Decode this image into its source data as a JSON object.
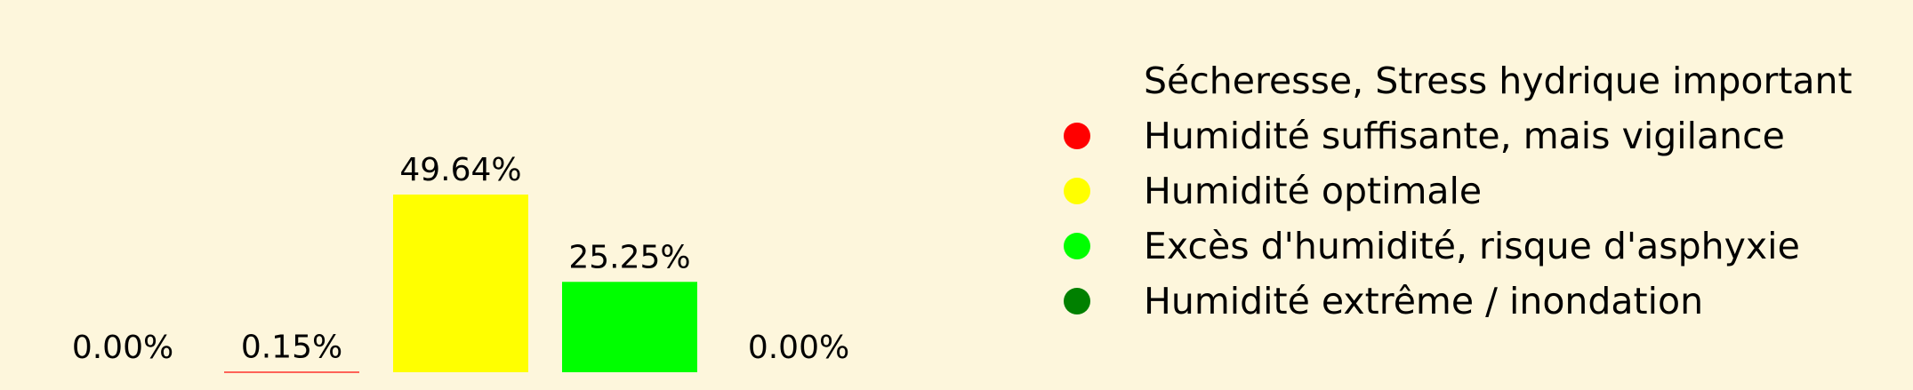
{
  "colors": {
    "background": "#fdf6dc",
    "text": "#000000"
  },
  "chart_data": {
    "type": "bar",
    "categories": [
      "Sécheresse, Stress hydrique important",
      "Humidité suffisante, mais vigilance",
      "Humidité optimale",
      "Excès d'humidité, risque d'asphyxie",
      "Humidité extrême / inondation"
    ],
    "values": [
      0.0,
      0.15,
      49.64,
      25.25,
      0.0
    ],
    "value_labels": [
      "0.00%",
      "0.15%",
      "49.64%",
      "25.25%",
      "0.00%"
    ],
    "bar_colors": [
      "#ffffff",
      "#ff0000",
      "#ffff00",
      "#00ff00",
      "#008000"
    ],
    "legend": [
      {
        "label": "Sécheresse, Stress hydrique important",
        "color": "#fdf6dc"
      },
      {
        "label": "Humidité suffisante, mais vigilance",
        "color": "#ff0000"
      },
      {
        "label": "Humidité optimale",
        "color": "#ffff00"
      },
      {
        "label": "Excès d'humidité, risque d'asphyxie",
        "color": "#00ff00"
      },
      {
        "label": "Humidité extrême / inondation",
        "color": "#008000"
      }
    ],
    "legend_position": "right",
    "ylim": [
      0,
      49.64
    ],
    "grid": false,
    "axes_visible": false,
    "title": "",
    "xlabel": "",
    "ylabel": ""
  }
}
